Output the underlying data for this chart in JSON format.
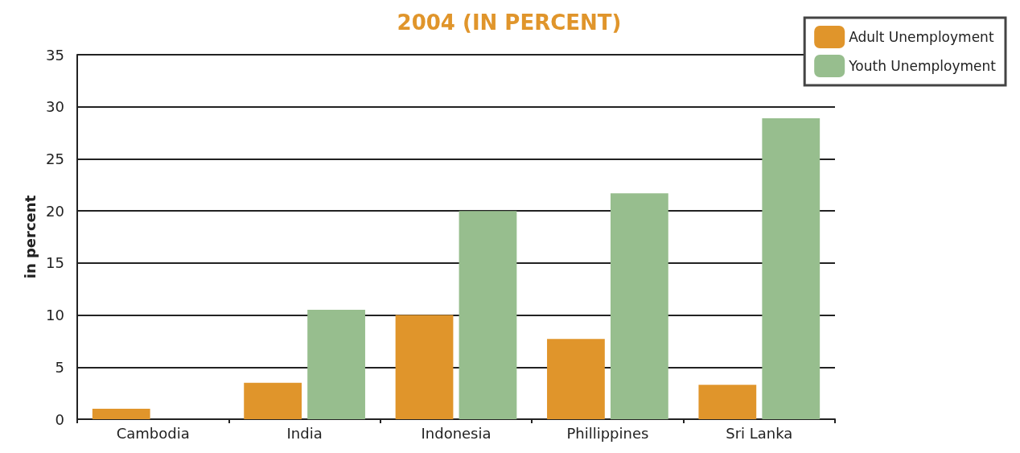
{
  "chart_data": {
    "type": "bar",
    "title": "2004 (IN PERCENT)",
    "ylabel": "in percent",
    "categories": [
      "Cambodia",
      "India",
      "Indonesia",
      "Phillippines",
      "Sri Lanka"
    ],
    "series": [
      {
        "name": "Adult Unemployment",
        "color": "#e0952b",
        "values": [
          1.0,
          3.5,
          10,
          7.7,
          3.3
        ]
      },
      {
        "name": "Youth Unemployment",
        "color": "#97be8e",
        "values": [
          null,
          10.5,
          20,
          21.7,
          28.9
        ]
      }
    ],
    "ylim": [
      0,
      35
    ],
    "yticks": [
      0,
      5,
      10,
      15,
      20,
      25,
      30,
      35
    ],
    "grid": "y",
    "legend": "top right"
  }
}
